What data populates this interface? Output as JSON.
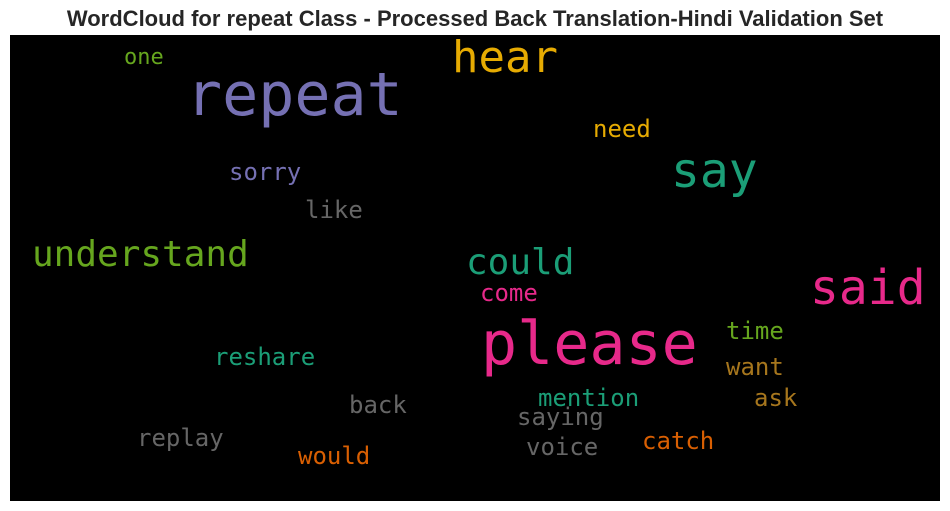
{
  "title": "WordCloud for repeat Class - Processed Back Translation-Hindi Validation Set",
  "words": [
    {
      "text": "repeat",
      "color": "#7570b3"
    },
    {
      "text": "hear",
      "color": "#e6ab02"
    },
    {
      "text": "one",
      "color": "#66a61e"
    },
    {
      "text": "need",
      "color": "#e6ab02"
    },
    {
      "text": "say",
      "color": "#1b9e77"
    },
    {
      "text": "sorry",
      "color": "#7570b3"
    },
    {
      "text": "like",
      "color": "#666666"
    },
    {
      "text": "understand",
      "color": "#66a61e"
    },
    {
      "text": "could",
      "color": "#1b9e77"
    },
    {
      "text": "said",
      "color": "#e7298a"
    },
    {
      "text": "come",
      "color": "#e7298a"
    },
    {
      "text": "please",
      "color": "#e7298a"
    },
    {
      "text": "time",
      "color": "#66a61e"
    },
    {
      "text": "reshare",
      "color": "#1b9e77"
    },
    {
      "text": "want",
      "color": "#a6761d"
    },
    {
      "text": "mention",
      "color": "#1b9e77"
    },
    {
      "text": "ask",
      "color": "#a6761d"
    },
    {
      "text": "back",
      "color": "#666666"
    },
    {
      "text": "saying",
      "color": "#666666"
    },
    {
      "text": "replay",
      "color": "#666666"
    },
    {
      "text": "catch",
      "color": "#d95f02"
    },
    {
      "text": "voice",
      "color": "#666666"
    },
    {
      "text": "would",
      "color": "#d95f02"
    }
  ]
}
